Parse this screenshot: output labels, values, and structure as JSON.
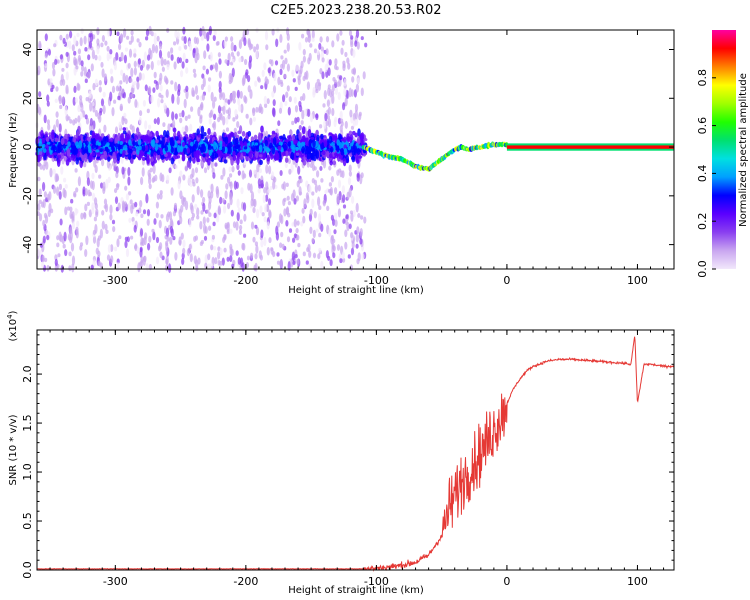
{
  "title": "C2E5.2023.238.20.53.R02",
  "colors": {
    "snr_line": "#e53935",
    "axis": "#000000",
    "colormap": [
      "#f2e8fb",
      "#c9a6f0",
      "#8a3ff0",
      "#5a00ff",
      "#0000ff",
      "#00a0ff",
      "#00e0e0",
      "#00e070",
      "#20ff00",
      "#a0ff00",
      "#ffff00",
      "#ff8000",
      "#ff0000",
      "#ff00a0"
    ]
  },
  "chart_data": [
    {
      "type": "heatmap",
      "xlabel": "Height of straight line (km)",
      "ylabel": "Frequency (Hz)",
      "xlim": [
        -360,
        128
      ],
      "ylim": [
        -50,
        48
      ],
      "xticks": [
        "-300",
        "-200",
        "-100",
        "0",
        "100"
      ],
      "yticks": [
        "-40",
        "-20",
        "0",
        "20",
        "40"
      ],
      "colorbar": {
        "label": "Normalized spectral amplitude",
        "range": [
          0.0,
          1.0
        ],
        "ticks": [
          "0.0",
          "0.2",
          "0.4",
          "0.6",
          "0.8"
        ]
      },
      "regions": [
        {
          "name": "noise",
          "x_range": [
            -360,
            -108
          ],
          "freq_range": [
            -50,
            48
          ],
          "amplitude": 0.05
        },
        {
          "name": "noise-band",
          "x_range": [
            -360,
            -108
          ],
          "freq_range": [
            -15,
            15
          ],
          "amplitude": 0.25
        },
        {
          "name": "signal",
          "x_range": [
            0,
            128
          ],
          "freq_range": [
            -1,
            1
          ],
          "amplitude": 0.95
        }
      ],
      "signal_trace": {
        "x": [
          -110,
          -100,
          -90,
          -80,
          -70,
          -60,
          -50,
          -45,
          -40,
          -35,
          -30,
          -20,
          -10,
          0,
          10,
          20,
          40,
          60,
          80,
          100,
          128
        ],
        "freq": [
          0,
          -2,
          -4,
          -5,
          -8,
          -9,
          -5,
          -3,
          -1,
          0,
          -1,
          0,
          1,
          1,
          0,
          0,
          0,
          0,
          0,
          0,
          0
        ]
      }
    },
    {
      "type": "line",
      "xlabel": "Height of straight line (km)",
      "ylabel": "SNR (10 * v/v)",
      "y_multiplier": "(x10^4)",
      "xlim": [
        -360,
        128
      ],
      "ylim": [
        0,
        2.45
      ],
      "xticks": [
        "-300",
        "-200",
        "-100",
        "0",
        "100"
      ],
      "yticks": [
        "0.0",
        "0.5",
        "1.0",
        "1.5",
        "2.0"
      ],
      "series": [
        {
          "x": [
            -360,
            -300,
            -250,
            -200,
            -150,
            -110,
            -100,
            -90,
            -80,
            -70,
            -60,
            -50,
            -45,
            -40,
            -35,
            -30,
            -25,
            -20,
            -15,
            -10,
            -5,
            0,
            5,
            10,
            15,
            20,
            25,
            30,
            40,
            50,
            60,
            70,
            80,
            90,
            95,
            98,
            100,
            105,
            110,
            120,
            128
          ],
          "y": [
            0.01,
            0.01,
            0.01,
            0.01,
            0.01,
            0.01,
            0.02,
            0.03,
            0.05,
            0.08,
            0.15,
            0.35,
            0.6,
            0.75,
            0.9,
            1.0,
            1.1,
            1.2,
            1.3,
            1.45,
            1.55,
            1.7,
            1.85,
            1.95,
            2.03,
            2.08,
            2.1,
            2.13,
            2.15,
            2.15,
            2.14,
            2.13,
            2.12,
            2.11,
            2.1,
            2.4,
            1.7,
            2.1,
            2.1,
            2.08,
            2.08
          ]
        }
      ]
    }
  ]
}
